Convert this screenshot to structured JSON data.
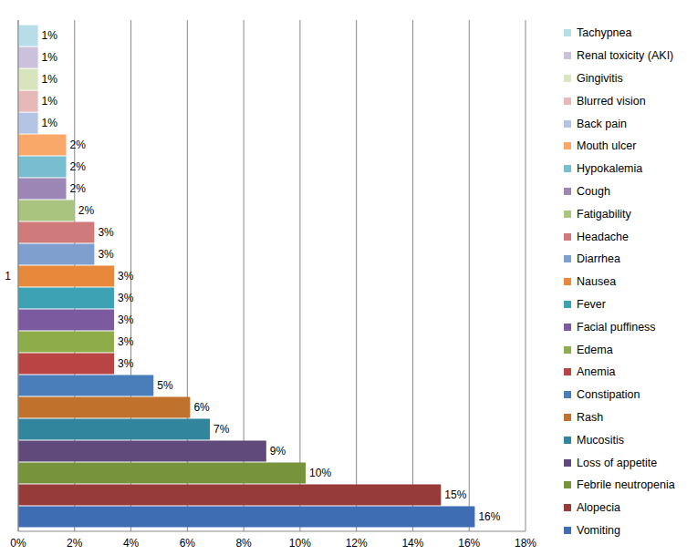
{
  "chart_data": {
    "type": "bar",
    "orientation": "horizontal",
    "categories": [
      "1"
    ],
    "xlim": [
      0,
      18
    ],
    "xticks": [
      {
        "value": 0,
        "label": "0%"
      },
      {
        "value": 2,
        "label": "2%"
      },
      {
        "value": 4,
        "label": "4%"
      },
      {
        "value": 6,
        "label": "6%"
      },
      {
        "value": 8,
        "label": "8%"
      },
      {
        "value": 10,
        "label": "10%"
      },
      {
        "value": 12,
        "label": "12%"
      },
      {
        "value": 14,
        "label": "14%"
      },
      {
        "value": 16,
        "label": "16%"
      },
      {
        "value": 18,
        "label": "18%"
      }
    ],
    "grid": true,
    "legend": "right",
    "data_labels": true,
    "series": [
      {
        "name": "Vomiting",
        "color": "#3e6db3",
        "values": [
          16.2
        ],
        "value_labels": [
          "16%"
        ]
      },
      {
        "name": "Alopecia",
        "color": "#963a3a",
        "values": [
          15.0
        ],
        "value_labels": [
          "15%"
        ]
      },
      {
        "name": "Febrile neutropenia",
        "color": "#77933c",
        "values": [
          10.2
        ],
        "value_labels": [
          "10%"
        ]
      },
      {
        "name": "Loss of  appetite",
        "color": "#604a7b",
        "values": [
          8.8
        ],
        "value_labels": [
          "9%"
        ]
      },
      {
        "name": "Mucositis",
        "color": "#31859c",
        "values": [
          6.8
        ],
        "value_labels": [
          "7%"
        ]
      },
      {
        "name": "Rash",
        "color": "#c0722c",
        "values": [
          6.1
        ],
        "value_labels": [
          "6%"
        ]
      },
      {
        "name": "Constipation",
        "color": "#4a7ebb",
        "values": [
          4.8
        ],
        "value_labels": [
          "5%"
        ]
      },
      {
        "name": "Anemia",
        "color": "#b94444",
        "values": [
          3.4
        ],
        "value_labels": [
          "3%"
        ]
      },
      {
        "name": "Edema",
        "color": "#8fac4b",
        "values": [
          3.4
        ],
        "value_labels": [
          "3%"
        ]
      },
      {
        "name": "Facial puffiness",
        "color": "#7b5aa0",
        "values": [
          3.4
        ],
        "value_labels": [
          "3%"
        ]
      },
      {
        "name": "Fever",
        "color": "#3ea2b5",
        "values": [
          3.4
        ],
        "value_labels": [
          "3%"
        ]
      },
      {
        "name": "Nausea",
        "color": "#e8883a",
        "values": [
          3.4
        ],
        "value_labels": [
          "3%"
        ]
      },
      {
        "name": "Diarrhea",
        "color": "#7f9fcf",
        "values": [
          2.7
        ],
        "value_labels": [
          "3%"
        ]
      },
      {
        "name": "Headache",
        "color": "#cf7b7b",
        "values": [
          2.7
        ],
        "value_labels": [
          "3%"
        ]
      },
      {
        "name": "Fatigability",
        "color": "#a9c47f",
        "values": [
          2.0
        ],
        "value_labels": [
          "2%"
        ]
      },
      {
        "name": "Cough",
        "color": "#9c86b5",
        "values": [
          1.7
        ],
        "value_labels": [
          "2%"
        ]
      },
      {
        "name": "Hypokalemia",
        "color": "#78bdd0",
        "values": [
          1.7
        ],
        "value_labels": [
          "2%"
        ]
      },
      {
        "name": "Mouth ulcer",
        "color": "#f9a86a",
        "values": [
          1.7
        ],
        "value_labels": [
          "2%"
        ]
      },
      {
        "name": "Back pain",
        "color": "#b4c5e4",
        "values": [
          0.7
        ],
        "value_labels": [
          "1%"
        ]
      },
      {
        "name": "Blurred vision",
        "color": "#e6b9b8",
        "values": [
          0.7
        ],
        "value_labels": [
          "1%"
        ]
      },
      {
        "name": "Gingivitis",
        "color": "#d7e4bd",
        "values": [
          0.7
        ],
        "value_labels": [
          "1%"
        ]
      },
      {
        "name": "Renal toxicity (AKI)",
        "color": "#ccc1da",
        "values": [
          0.7
        ],
        "value_labels": [
          "1%"
        ]
      },
      {
        "name": "Tachypnea",
        "color": "#b7dee8",
        "values": [
          0.7
        ],
        "value_labels": [
          "1%"
        ]
      }
    ]
  }
}
